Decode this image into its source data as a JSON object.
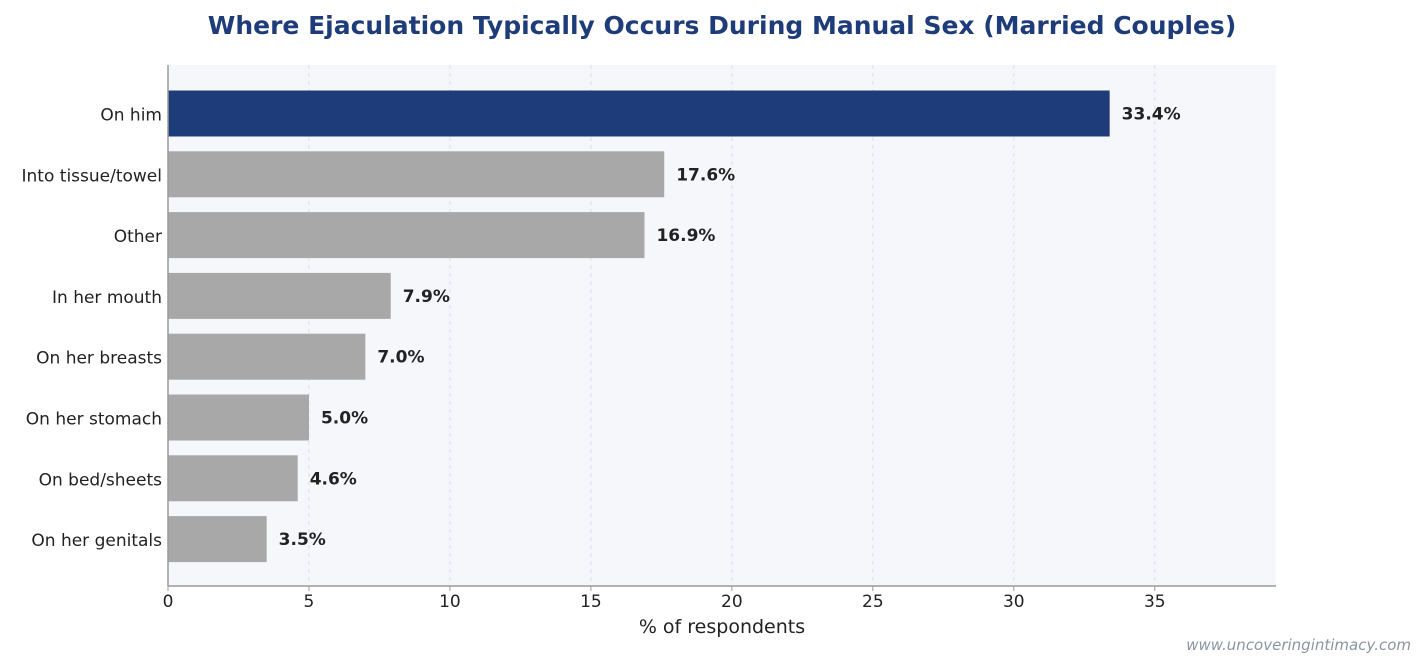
{
  "chart_data": {
    "type": "bar",
    "orientation": "horizontal",
    "title": "Where Ejaculation Typically Occurs During Manual Sex (Married Couples)",
    "xlabel": "% of respondents",
    "ylabel": "",
    "categories": [
      "On him",
      "Into tissue/towel",
      "Other",
      "In her mouth",
      "On her breasts",
      "On her stomach",
      "On bed/sheets",
      "On her genitals"
    ],
    "values": [
      33.4,
      17.6,
      16.9,
      7.9,
      7.0,
      5.0,
      4.6,
      3.5
    ],
    "value_labels": [
      "33.4%",
      "17.6%",
      "16.9%",
      "7.9%",
      "7.0%",
      "5.0%",
      "4.6%",
      "3.5%"
    ],
    "xlim": [
      0,
      39.3
    ],
    "xticks": [
      0,
      5,
      10,
      15,
      20,
      25,
      30,
      35
    ],
    "grid": "vertical dashed",
    "legend": "none",
    "colors": {
      "highlight": "#1f3c7a",
      "default": "#a8a8a8",
      "plot_background": "#f6f7fb",
      "grid": "#d9dde6",
      "title": "#1f3c7a"
    }
  },
  "watermark": "www.uncoveringintimacy.com"
}
